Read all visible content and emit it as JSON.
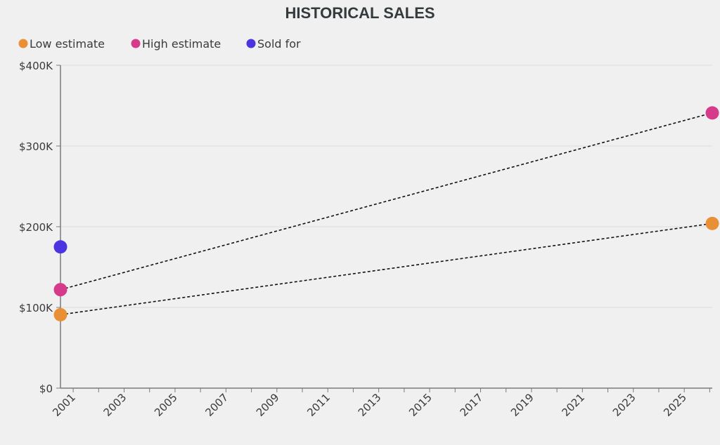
{
  "chart_data": {
    "type": "line",
    "title": "HISTORICAL SALES",
    "xlabel": "",
    "ylabel": "",
    "xlim": [
      2000.5,
      2026.1
    ],
    "ylim": [
      0,
      400000
    ],
    "x_ticks": [
      "2001",
      "2003",
      "2005",
      "2007",
      "2009",
      "2011",
      "2013",
      "2015",
      "2017",
      "2019",
      "2021",
      "2023",
      "2025"
    ],
    "x_tick_values": [
      2001,
      2003,
      2005,
      2007,
      2009,
      2011,
      2013,
      2015,
      2017,
      2019,
      2021,
      2023,
      2025
    ],
    "y_ticks": [
      "$0",
      "$100K",
      "$200K",
      "$300K",
      "$400K"
    ],
    "y_tick_values": [
      0,
      100000,
      200000,
      300000,
      400000
    ],
    "grid": true,
    "legend_position": "top-left",
    "series": [
      {
        "name": "Low estimate",
        "color": "#e98f35",
        "line_style": "dashed",
        "points": [
          [
            2000.5,
            91000
          ],
          [
            2026.1,
            204000
          ]
        ]
      },
      {
        "name": "High estimate",
        "color": "#d63b8b",
        "line_style": "dashed",
        "points": [
          [
            2000.5,
            122000
          ],
          [
            2026.1,
            341000
          ]
        ]
      },
      {
        "name": "Sold for",
        "color": "#4a35e0",
        "line_style": "none",
        "points": [
          [
            2000.5,
            175000
          ]
        ]
      }
    ]
  }
}
